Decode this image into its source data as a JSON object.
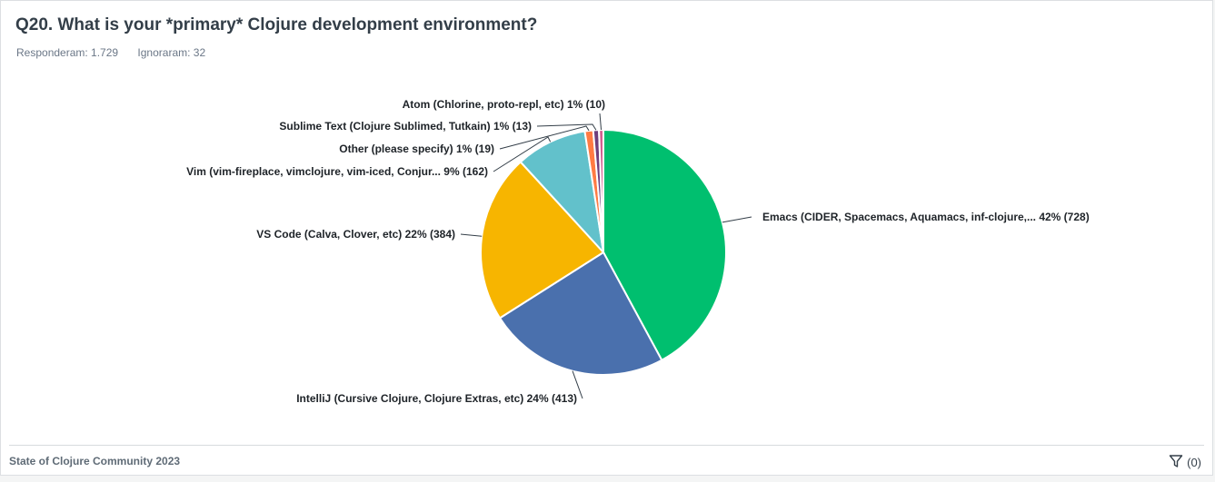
{
  "header": {
    "title": "Q20. What is your *primary* Clojure development environment?",
    "answered": "Responderam: 1.729",
    "skipped": "Ignoraram: 32"
  },
  "footer": {
    "survey_name": "State of Clojure Community 2023",
    "filter_count": "(0)"
  },
  "chart_data": {
    "type": "pie",
    "title": "",
    "start_angle_deg": 0,
    "direction": "clockwise",
    "slices": [
      {
        "label": "Emacs (CIDER, Spacemacs, Aquamacs, inf-clojure,... 42% (728)",
        "name": "Emacs (CIDER, Spacemacs, Aquamacs, inf-clojure,...",
        "percent": 42,
        "count": 728,
        "color": "#00bf6f"
      },
      {
        "label": "IntelliJ (Cursive Clojure, Clojure Extras, etc) 24% (413)",
        "name": "IntelliJ (Cursive Clojure, Clojure Extras, etc)",
        "percent": 24,
        "count": 413,
        "color": "#4a70ad"
      },
      {
        "label": "VS Code (Calva, Clover, etc) 22% (384)",
        "name": "VS Code (Calva, Clover, etc)",
        "percent": 22,
        "count": 384,
        "color": "#f7b500"
      },
      {
        "label": "Vim (vim-fireplace, vimclojure, vim-iced, Conjur... 9% (162)",
        "name": "Vim (vim-fireplace, vimclojure, vim-iced, Conjur...",
        "percent": 9,
        "count": 162,
        "color": "#62c1cb"
      },
      {
        "label": "Other (please specify) 1% (19)",
        "name": "Other (please specify)",
        "percent": 1,
        "count": 19,
        "color": "#ff7b43"
      },
      {
        "label": "Sublime Text (Clojure Sublimed, Tutkain) 1% (13)",
        "name": "Sublime Text (Clojure Sublimed, Tutkain)",
        "percent": 1,
        "count": 13,
        "color": "#6f3e7c"
      },
      {
        "label": "Atom (Chlorine, proto-repl, etc) 1% (10)",
        "name": "Atom (Chlorine, proto-repl, etc)",
        "percent": 1,
        "count": 10,
        "color": "#d25f90"
      }
    ]
  }
}
